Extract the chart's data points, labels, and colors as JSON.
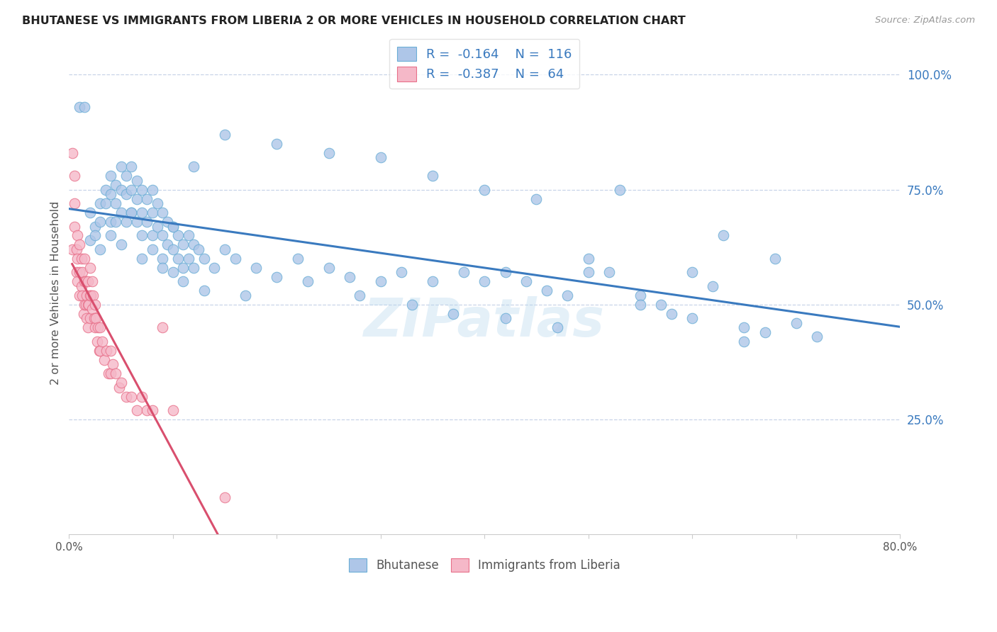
{
  "title": "BHUTANESE VS IMMIGRANTS FROM LIBERIA 2 OR MORE VEHICLES IN HOUSEHOLD CORRELATION CHART",
  "source": "Source: ZipAtlas.com",
  "ylabel": "2 or more Vehicles in Household",
  "yticks": [
    0.25,
    0.5,
    0.75,
    1.0
  ],
  "ytick_labels": [
    "25.0%",
    "50.0%",
    "75.0%",
    "100.0%"
  ],
  "xlim": [
    0.0,
    0.8
  ],
  "ylim": [
    0.0,
    1.05
  ],
  "watermark": "ZIPatlas",
  "legend_r1": "-0.164",
  "legend_n1": "116",
  "legend_r2": "-0.387",
  "legend_n2": "64",
  "blue_color": "#aec6e8",
  "pink_color": "#f5b8c8",
  "blue_edge_color": "#6baed6",
  "pink_edge_color": "#e8708a",
  "blue_line_color": "#3a7abf",
  "pink_line_color": "#d94f6e",
  "background_color": "#ffffff",
  "grid_color": "#c8d4e8",
  "text_color": "#555555",
  "blue_text_color": "#3a7abf",
  "bhutanese_x": [
    0.01,
    0.015,
    0.02,
    0.02,
    0.025,
    0.025,
    0.03,
    0.03,
    0.03,
    0.035,
    0.035,
    0.04,
    0.04,
    0.04,
    0.045,
    0.045,
    0.045,
    0.05,
    0.05,
    0.05,
    0.055,
    0.055,
    0.055,
    0.06,
    0.06,
    0.06,
    0.065,
    0.065,
    0.065,
    0.07,
    0.07,
    0.07,
    0.075,
    0.075,
    0.08,
    0.08,
    0.08,
    0.085,
    0.085,
    0.09,
    0.09,
    0.09,
    0.095,
    0.095,
    0.1,
    0.1,
    0.1,
    0.105,
    0.105,
    0.11,
    0.11,
    0.115,
    0.115,
    0.12,
    0.12,
    0.125,
    0.13,
    0.14,
    0.15,
    0.16,
    0.18,
    0.2,
    0.22,
    0.25,
    0.27,
    0.3,
    0.32,
    0.35,
    0.38,
    0.4,
    0.42,
    0.44,
    0.46,
    0.48,
    0.5,
    0.52,
    0.53,
    0.55,
    0.57,
    0.58,
    0.6,
    0.62,
    0.63,
    0.65,
    0.67,
    0.68,
    0.7,
    0.72,
    0.4,
    0.45,
    0.35,
    0.3,
    0.25,
    0.2,
    0.15,
    0.12,
    0.1,
    0.08,
    0.06,
    0.04,
    0.05,
    0.07,
    0.09,
    0.11,
    0.13,
    0.17,
    0.23,
    0.28,
    0.33,
    0.37,
    0.42,
    0.47,
    0.5,
    0.55,
    0.6,
    0.65
  ],
  "bhutanese_y": [
    0.93,
    0.93,
    0.64,
    0.7,
    0.67,
    0.65,
    0.72,
    0.68,
    0.62,
    0.75,
    0.72,
    0.78,
    0.74,
    0.68,
    0.76,
    0.72,
    0.68,
    0.8,
    0.75,
    0.7,
    0.78,
    0.74,
    0.68,
    0.8,
    0.75,
    0.7,
    0.77,
    0.73,
    0.68,
    0.75,
    0.7,
    0.65,
    0.73,
    0.68,
    0.75,
    0.7,
    0.65,
    0.72,
    0.67,
    0.7,
    0.65,
    0.6,
    0.68,
    0.63,
    0.67,
    0.62,
    0.57,
    0.65,
    0.6,
    0.63,
    0.58,
    0.65,
    0.6,
    0.63,
    0.58,
    0.62,
    0.6,
    0.58,
    0.62,
    0.6,
    0.58,
    0.56,
    0.6,
    0.58,
    0.56,
    0.55,
    0.57,
    0.55,
    0.57,
    0.55,
    0.57,
    0.55,
    0.53,
    0.52,
    0.6,
    0.57,
    0.75,
    0.52,
    0.5,
    0.48,
    0.57,
    0.54,
    0.65,
    0.45,
    0.44,
    0.6,
    0.46,
    0.43,
    0.75,
    0.73,
    0.78,
    0.82,
    0.83,
    0.85,
    0.87,
    0.8,
    0.67,
    0.62,
    0.7,
    0.65,
    0.63,
    0.6,
    0.58,
    0.55,
    0.53,
    0.52,
    0.55,
    0.52,
    0.5,
    0.48,
    0.47,
    0.45,
    0.57,
    0.5,
    0.47,
    0.42
  ],
  "liberia_x": [
    0.003,
    0.003,
    0.005,
    0.005,
    0.005,
    0.007,
    0.007,
    0.008,
    0.008,
    0.008,
    0.01,
    0.01,
    0.01,
    0.012,
    0.012,
    0.013,
    0.013,
    0.014,
    0.015,
    0.015,
    0.015,
    0.016,
    0.016,
    0.017,
    0.017,
    0.018,
    0.018,
    0.018,
    0.019,
    0.02,
    0.02,
    0.02,
    0.021,
    0.022,
    0.022,
    0.023,
    0.024,
    0.025,
    0.025,
    0.026,
    0.027,
    0.028,
    0.029,
    0.03,
    0.03,
    0.032,
    0.034,
    0.036,
    0.038,
    0.04,
    0.04,
    0.042,
    0.045,
    0.048,
    0.05,
    0.055,
    0.06,
    0.065,
    0.07,
    0.075,
    0.08,
    0.09,
    0.1,
    0.15
  ],
  "liberia_y": [
    0.62,
    0.83,
    0.67,
    0.72,
    0.78,
    0.62,
    0.57,
    0.65,
    0.6,
    0.55,
    0.63,
    0.57,
    0.52,
    0.6,
    0.54,
    0.57,
    0.52,
    0.48,
    0.6,
    0.55,
    0.5,
    0.55,
    0.5,
    0.52,
    0.47,
    0.55,
    0.5,
    0.45,
    0.5,
    0.58,
    0.52,
    0.47,
    0.52,
    0.55,
    0.49,
    0.52,
    0.47,
    0.5,
    0.45,
    0.47,
    0.42,
    0.45,
    0.4,
    0.45,
    0.4,
    0.42,
    0.38,
    0.4,
    0.35,
    0.4,
    0.35,
    0.37,
    0.35,
    0.32,
    0.33,
    0.3,
    0.3,
    0.27,
    0.3,
    0.27,
    0.27,
    0.45,
    0.27,
    0.08
  ]
}
